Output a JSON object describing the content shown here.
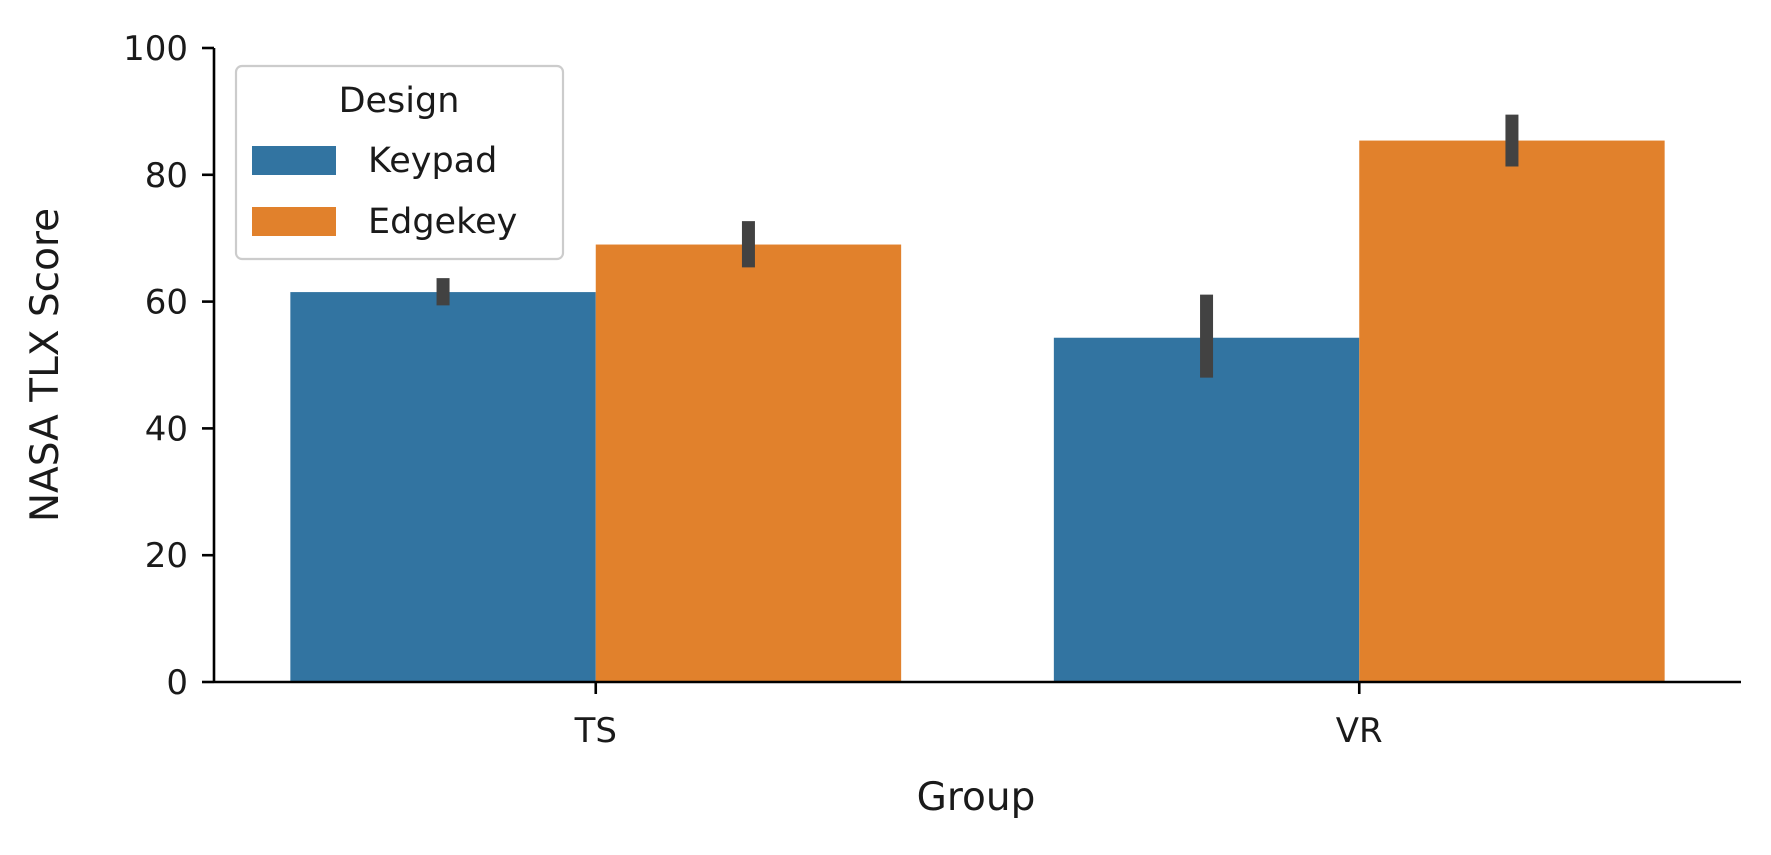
{
  "chart_data": {
    "type": "bar",
    "categories": [
      "TS",
      "VR"
    ],
    "series": [
      {
        "name": "Keypad",
        "values": [
          61.5,
          54.3
        ],
        "err_low": [
          59.4,
          48.0
        ],
        "err_high": [
          63.7,
          61.1
        ]
      },
      {
        "name": "Edgekey",
        "values": [
          69.0,
          85.4
        ],
        "err_low": [
          65.4,
          81.3
        ],
        "err_high": [
          72.7,
          89.5
        ]
      }
    ],
    "xlabel": "Group",
    "ylabel": "NASA TLX Score",
    "ylim": [
      0,
      100
    ],
    "yticks": [
      "0",
      "20",
      "40",
      "60",
      "80",
      "100"
    ],
    "grid": false,
    "legend": {
      "title": "Design",
      "position": "top-left"
    },
    "colors": {
      "Keypad": "#3274a1",
      "Edgekey": "#e1812c",
      "errorbar": "#424242",
      "axis": "#000000"
    }
  }
}
